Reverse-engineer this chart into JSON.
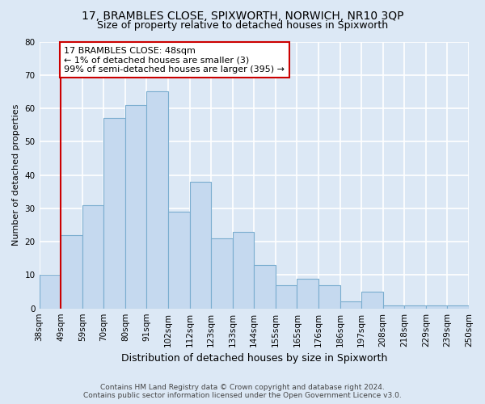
{
  "title1": "17, BRAMBLES CLOSE, SPIXWORTH, NORWICH, NR10 3QP",
  "title2": "Size of property relative to detached houses in Spixworth",
  "xlabel": "Distribution of detached houses by size in Spixworth",
  "ylabel": "Number of detached properties",
  "x_labels": [
    "38sqm",
    "49sqm",
    "59sqm",
    "70sqm",
    "80sqm",
    "91sqm",
    "102sqm",
    "112sqm",
    "123sqm",
    "133sqm",
    "144sqm",
    "155sqm",
    "165sqm",
    "176sqm",
    "186sqm",
    "197sqm",
    "208sqm",
    "218sqm",
    "229sqm",
    "239sqm",
    "250sqm"
  ],
  "bar_heights": [
    10,
    22,
    31,
    57,
    61,
    65,
    29,
    38,
    21,
    23,
    13,
    7,
    9,
    7,
    2,
    5,
    1,
    1,
    1,
    1
  ],
  "bar_color": "#c5d9ef",
  "bar_edge_color": "#7aadcf",
  "vline_color": "#cc0000",
  "ylim": [
    0,
    80
  ],
  "yticks": [
    0,
    10,
    20,
    30,
    40,
    50,
    60,
    70,
    80
  ],
  "annotation_line1": "17 BRAMBLES CLOSE: 48sqm",
  "annotation_line2": "← 1% of detached houses are smaller (3)",
  "annotation_line3": "99% of semi-detached houses are larger (395) →",
  "footer1": "Contains HM Land Registry data © Crown copyright and database right 2024.",
  "footer2": "Contains public sector information licensed under the Open Government Licence v3.0.",
  "bg_color": "#dce8f5",
  "grid_color": "white",
  "title1_fontsize": 10,
  "title2_fontsize": 9,
  "axis_label_fontsize": 9,
  "ylabel_fontsize": 8,
  "tick_fontsize": 7.5,
  "footer_fontsize": 6.5,
  "annot_fontsize": 8
}
